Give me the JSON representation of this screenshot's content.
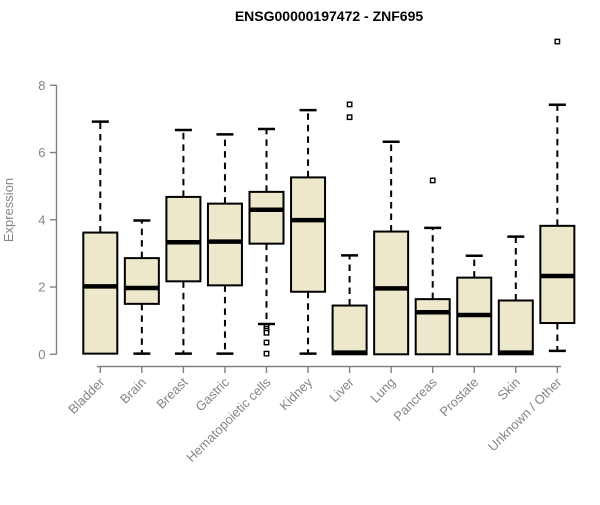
{
  "title": "ENSG00000197472 - ZNF695",
  "colors": {
    "background": "#ffffff",
    "box_fill": "#EDE8CC",
    "box_border": "#000000",
    "median": "#000000",
    "whisker": "#000000",
    "outlier_stroke": "#000000",
    "outlier_fill": "#ffffff",
    "axis": "#808080",
    "tick_label": "#858585",
    "title": "#000000"
  },
  "chart_data": {
    "type": "boxplot",
    "title": "ENSG00000197472 - ZNF695",
    "xlabel": "",
    "ylabel": "Expression",
    "ylim": [
      0,
      8
    ],
    "yticks": [
      0,
      2,
      4,
      6,
      8
    ],
    "grid": false,
    "legend": "none",
    "x_tick_rotation_deg": 45,
    "categories": [
      "Bladder",
      "Brain",
      "Breast",
      "Gastric",
      "Hematopoietic cells",
      "Kidney",
      "Liver",
      "Lung",
      "Pancreas",
      "Prostate",
      "Skin",
      "Unknown / Other"
    ],
    "boxes": [
      {
        "category": "Bladder",
        "whisker_low": 0.02,
        "q1": 0.02,
        "median": 2.02,
        "q3": 3.62,
        "whisker_high": 6.92,
        "outliers": []
      },
      {
        "category": "Brain",
        "whisker_low": 0.02,
        "q1": 1.5,
        "median": 1.97,
        "q3": 2.86,
        "whisker_high": 3.98,
        "outliers": []
      },
      {
        "category": "Breast",
        "whisker_low": 0.02,
        "q1": 2.17,
        "median": 3.33,
        "q3": 4.68,
        "whisker_high": 6.67,
        "outliers": []
      },
      {
        "category": "Gastric",
        "whisker_low": 0.02,
        "q1": 2.05,
        "median": 3.35,
        "q3": 4.48,
        "whisker_high": 6.54,
        "outliers": []
      },
      {
        "category": "Hematopoietic cells",
        "whisker_low": 0.9,
        "q1": 3.29,
        "median": 4.3,
        "q3": 4.83,
        "whisker_high": 6.7,
        "outliers": [
          0.82,
          0.76,
          0.7,
          0.64,
          0.35,
          0.02
        ]
      },
      {
        "category": "Kidney",
        "whisker_low": 0.02,
        "q1": 1.86,
        "median": 3.99,
        "q3": 5.26,
        "whisker_high": 7.26,
        "outliers": []
      },
      {
        "category": "Liver",
        "whisker_low": 0.0,
        "q1": 0.0,
        "median": 0.05,
        "q3": 1.45,
        "whisker_high": 2.94,
        "outliers": [
          7.43,
          7.05
        ]
      },
      {
        "category": "Lung",
        "whisker_low": 0.0,
        "q1": 0.0,
        "median": 1.96,
        "q3": 3.65,
        "whisker_high": 6.32,
        "outliers": []
      },
      {
        "category": "Pancreas",
        "whisker_low": 0.0,
        "q1": 0.0,
        "median": 1.25,
        "q3": 1.64,
        "whisker_high": 3.76,
        "outliers": [
          5.17
        ]
      },
      {
        "category": "Prostate",
        "whisker_low": 0.0,
        "q1": 0.0,
        "median": 1.17,
        "q3": 2.28,
        "whisker_high": 2.93,
        "outliers": []
      },
      {
        "category": "Skin",
        "whisker_low": 0.0,
        "q1": 0.0,
        "median": 0.05,
        "q3": 1.6,
        "whisker_high": 3.5,
        "outliers": []
      },
      {
        "category": "Unknown / Other",
        "whisker_low": 0.1,
        "q1": 0.93,
        "median": 2.33,
        "q3": 3.82,
        "whisker_high": 7.42,
        "outliers": [
          9.3
        ]
      }
    ]
  }
}
